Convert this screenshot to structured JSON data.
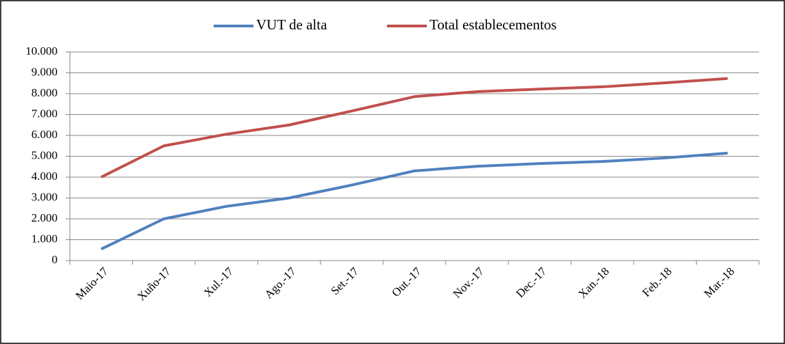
{
  "chart_data": {
    "type": "line",
    "categories": [
      "Maio-17",
      "Xuño-17",
      "Xul.-17",
      "Ago.-17",
      "Set.-17",
      "Out.-17",
      "Nov.-17",
      "Dec.-17",
      "Xan.-18",
      "Feb.-18",
      "Mar.-18"
    ],
    "series": [
      {
        "name": "VUT de alta",
        "color": "#4f81bd",
        "values": [
          550,
          2000,
          2600,
          3000,
          3620,
          4300,
          4520,
          4650,
          4750,
          4920,
          5150
        ]
      },
      {
        "name": "Total establecementos",
        "color": "#c0504d",
        "values": [
          4000,
          5500,
          6060,
          6500,
          7170,
          7860,
          8100,
          8220,
          8330,
          8520,
          8730
        ]
      }
    ],
    "ylim": [
      0,
      10000
    ],
    "yticks": [
      0,
      {
        "value": 1000,
        "label": "1.000"
      },
      {
        "value": 2000,
        "label": "2.000"
      },
      {
        "value": 3000,
        "label": "3.000"
      },
      {
        "value": 4000,
        "label": "4.000"
      },
      {
        "value": 5000,
        "label": "5.000"
      },
      {
        "value": 6000,
        "label": "6.000"
      },
      {
        "value": 7000,
        "label": "7.000"
      },
      {
        "value": 8000,
        "label": "8.000"
      },
      {
        "value": 9000,
        "label": "9.000"
      },
      {
        "value": 10000,
        "label": "10.000"
      }
    ],
    "grid": true,
    "legend": "top"
  }
}
